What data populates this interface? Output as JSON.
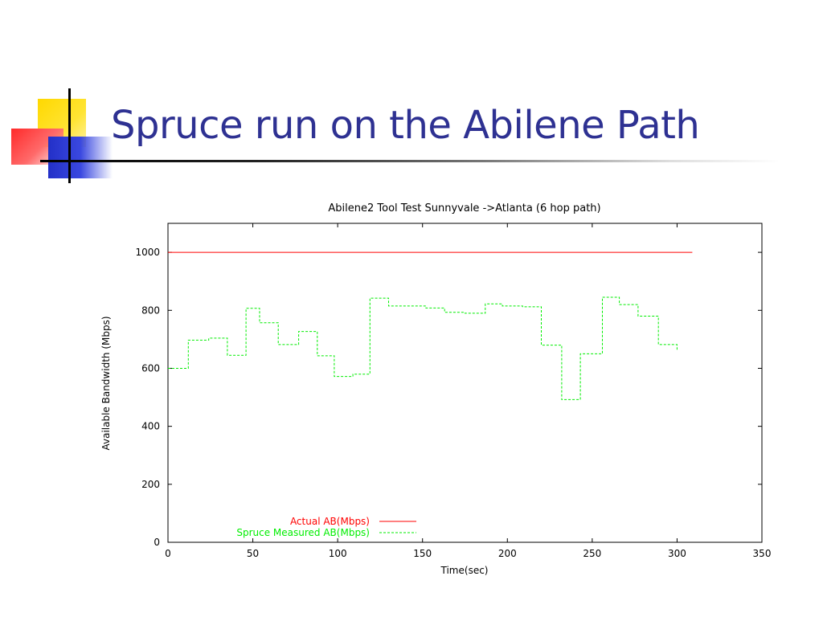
{
  "slide": {
    "title": "Spruce run on the Abilene Path"
  },
  "colors": {
    "title": "#2e3192",
    "actual_series": "#ff0000",
    "measured_series": "#00ee00"
  },
  "chart_data": {
    "type": "line",
    "title": "Abilene2 Tool Test Sunnyvale ->Atlanta (6 hop path)",
    "xlabel": "Time(sec)",
    "ylabel": "Available Bandwidth (Mbps)",
    "xlim": [
      0,
      350
    ],
    "ylim": [
      0,
      1100
    ],
    "x_ticks": [
      0,
      50,
      100,
      150,
      200,
      250,
      300,
      350
    ],
    "y_ticks": [
      0,
      200,
      400,
      600,
      800,
      1000
    ],
    "grid": false,
    "legend_position": "bottom-left",
    "series": [
      {
        "name": "Actual AB(Mbps)",
        "color": "#ff0000",
        "style": "solid",
        "points": [
          [
            0,
            1000
          ],
          [
            309,
            1000
          ]
        ]
      },
      {
        "name": "Spruce Measured AB(Mbps)",
        "color": "#00ee00",
        "style": "dashed-steps",
        "points": [
          [
            0,
            600
          ],
          [
            12,
            600
          ],
          [
            12,
            697
          ],
          [
            24,
            697
          ],
          [
            24,
            704
          ],
          [
            35,
            704
          ],
          [
            35,
            645
          ],
          [
            46,
            645
          ],
          [
            46,
            807
          ],
          [
            54,
            807
          ],
          [
            54,
            757
          ],
          [
            65,
            757
          ],
          [
            65,
            682
          ],
          [
            77,
            682
          ],
          [
            77,
            727
          ],
          [
            88,
            727
          ],
          [
            88,
            643
          ],
          [
            98,
            643
          ],
          [
            98,
            572
          ],
          [
            109,
            572
          ],
          [
            109,
            580
          ],
          [
            119,
            580
          ],
          [
            119,
            842
          ],
          [
            130,
            842
          ],
          [
            130,
            815
          ],
          [
            140,
            815
          ],
          [
            140,
            815
          ],
          [
            152,
            815
          ],
          [
            152,
            808
          ],
          [
            163,
            808
          ],
          [
            163,
            793
          ],
          [
            175,
            793
          ],
          [
            175,
            790
          ],
          [
            187,
            790
          ],
          [
            187,
            822
          ],
          [
            197,
            822
          ],
          [
            197,
            815
          ],
          [
            209,
            815
          ],
          [
            209,
            812
          ],
          [
            220,
            812
          ],
          [
            220,
            680
          ],
          [
            232,
            680
          ],
          [
            232,
            492
          ],
          [
            243,
            492
          ],
          [
            243,
            650
          ],
          [
            256,
            650
          ],
          [
            256,
            845
          ],
          [
            266,
            845
          ],
          [
            266,
            820
          ],
          [
            277,
            820
          ],
          [
            277,
            780
          ],
          [
            289,
            780
          ],
          [
            289,
            682
          ],
          [
            300,
            682
          ],
          [
            300,
            660
          ]
        ]
      }
    ]
  }
}
